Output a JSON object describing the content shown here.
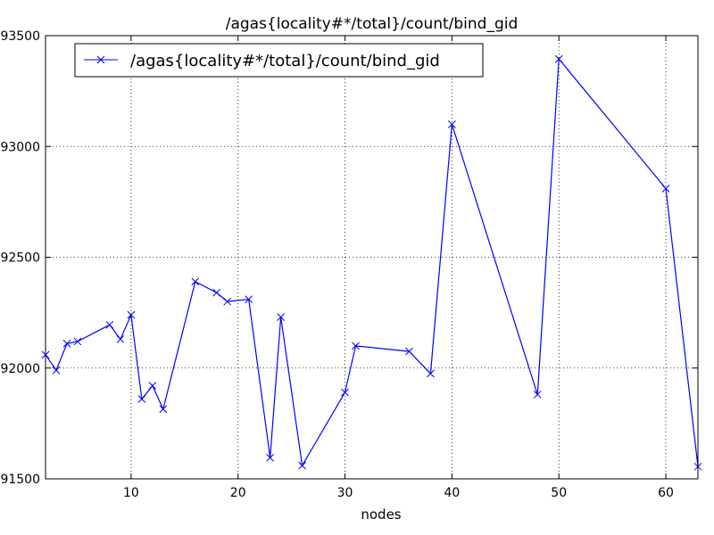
{
  "chart_data": {
    "type": "line",
    "title": "/agas{locality#*/total}/count/bind_gid",
    "xlabel": "nodes",
    "ylabel": "",
    "xlim": [
      2,
      63
    ],
    "ylim": [
      91500,
      93500
    ],
    "xticks": [
      10,
      20,
      30,
      40,
      50,
      60
    ],
    "yticks": [
      91500,
      92000,
      92500,
      93000,
      93500
    ],
    "grid": true,
    "legend_position": "top-left",
    "series": [
      {
        "name": "/agas{locality#*/total}/count/bind_gid",
        "color": "#0000ff",
        "marker": "x",
        "x": [
          2,
          3,
          4,
          5,
          8,
          9,
          10,
          11,
          12,
          13,
          16,
          18,
          19,
          21,
          23,
          24,
          26,
          30,
          31,
          36,
          38,
          40,
          48,
          50,
          60,
          63
        ],
        "y": [
          92060,
          91990,
          92110,
          92120,
          92195,
          92130,
          92240,
          91860,
          91920,
          91815,
          92390,
          92340,
          92300,
          92310,
          91595,
          92230,
          91560,
          91890,
          92100,
          92075,
          91975,
          93100,
          91880,
          93395,
          92810,
          91555
        ]
      }
    ]
  }
}
